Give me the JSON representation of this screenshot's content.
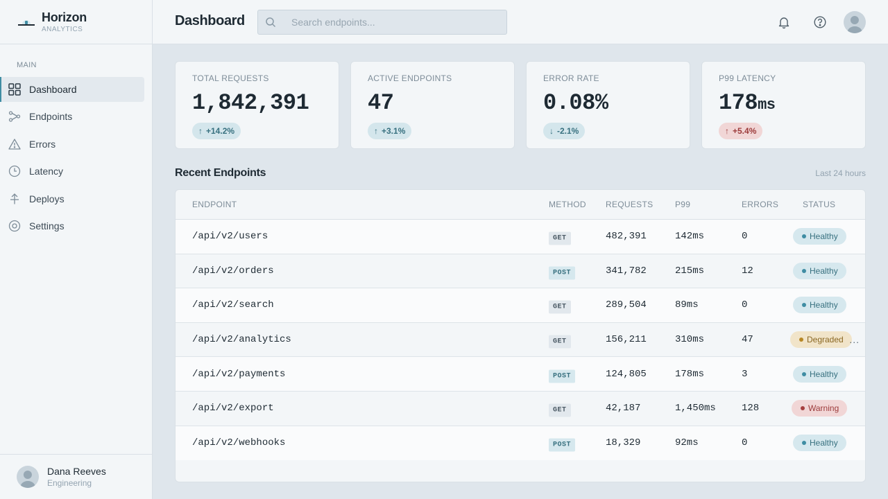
{
  "brand": {
    "name": "Horizon",
    "sub": "ANALYTICS"
  },
  "sidebar": {
    "section_label": "MAIN",
    "items": [
      {
        "label": "Dashboard",
        "icon": "grid-icon",
        "active": true
      },
      {
        "label": "Endpoints",
        "icon": "nodes-icon"
      },
      {
        "label": "Errors",
        "icon": "warning-icon"
      },
      {
        "label": "Latency",
        "icon": "clock-icon"
      },
      {
        "label": "Deploys",
        "icon": "deploy-icon"
      },
      {
        "label": "Settings",
        "icon": "gear-icon"
      }
    ],
    "user": {
      "name": "Dana Reeves",
      "team": "Engineering"
    }
  },
  "header": {
    "title": "Dashboard",
    "search_placeholder": "Search endpoints..."
  },
  "stats": [
    {
      "label": "TOTAL REQUESTS",
      "value": "1,842,391",
      "unit": "",
      "delta": "+14.2%",
      "direction": "up",
      "tone": "good"
    },
    {
      "label": "ACTIVE ENDPOINTS",
      "value": "47",
      "unit": "",
      "delta": "+3.1%",
      "direction": "up",
      "tone": "good"
    },
    {
      "label": "ERROR RATE",
      "value": "0.08%",
      "unit": "",
      "delta": "-2.1%",
      "direction": "down",
      "tone": "good"
    },
    {
      "label": "P99 LATENCY",
      "value": "178",
      "unit": "ms",
      "delta": "+5.4%",
      "direction": "up",
      "tone": "bad"
    }
  ],
  "recent": {
    "title": "Recent Endpoints",
    "note": "Last 24 hours",
    "columns": [
      "ENDPOINT",
      "METHOD",
      "REQUESTS",
      "P99",
      "ERRORS",
      "STATUS"
    ],
    "rows": [
      {
        "endpoint": "/api/v2/users",
        "method": "GET",
        "requests": "482,391",
        "p99": "142ms",
        "errors": "0",
        "status": "Healthy"
      },
      {
        "endpoint": "/api/v2/orders",
        "method": "POST",
        "requests": "341,782",
        "p99": "215ms",
        "errors": "12",
        "status": "Healthy"
      },
      {
        "endpoint": "/api/v2/search",
        "method": "GET",
        "requests": "289,504",
        "p99": "89ms",
        "errors": "0",
        "status": "Healthy"
      },
      {
        "endpoint": "/api/v2/analytics",
        "method": "GET",
        "requests": "156,211",
        "p99": "310ms",
        "errors": "47",
        "status": "Degraded"
      },
      {
        "endpoint": "/api/v2/payments",
        "method": "POST",
        "requests": "124,805",
        "p99": "178ms",
        "errors": "3",
        "status": "Healthy"
      },
      {
        "endpoint": "/api/v2/export",
        "method": "GET",
        "requests": "42,187",
        "p99": "1,450ms",
        "errors": "128",
        "status": "Warning"
      },
      {
        "endpoint": "/api/v2/webhooks",
        "method": "POST",
        "requests": "18,329",
        "p99": "92ms",
        "errors": "0",
        "status": "Healthy"
      }
    ],
    "overflow_marker": "..."
  },
  "colors": {
    "accent": "#3f8da3",
    "healthy": "#3f8da3",
    "degraded": "#b78725",
    "warning": "#a63f3f",
    "background": "#dfe6ec",
    "surface": "#f3f6f8"
  }
}
